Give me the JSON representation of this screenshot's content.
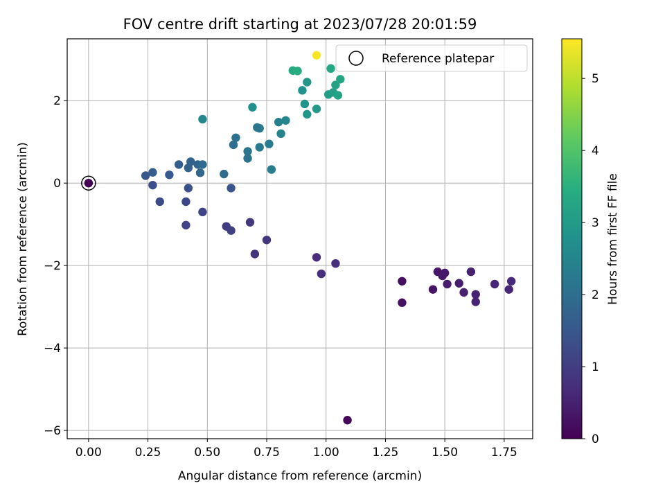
{
  "chart_data": {
    "type": "scatter",
    "title": "FOV centre drift starting at 2023/07/28 20:01:59",
    "xlabel": "Angular distance from reference (arcmin)",
    "ylabel": "Rotation from reference (arcmin)",
    "xlim": [
      -0.09,
      1.87
    ],
    "ylim": [
      -6.2,
      3.5
    ],
    "xticks": [
      0.0,
      0.25,
      0.5,
      0.75,
      1.0,
      1.25,
      1.5,
      1.75
    ],
    "xtick_labels": [
      "0.00",
      "0.25",
      "0.50",
      "0.75",
      "1.00",
      "1.25",
      "1.50",
      "1.75"
    ],
    "yticks": [
      2,
      0,
      -2,
      -4,
      -6
    ],
    "ytick_labels": [
      "2",
      "0",
      "−2",
      "−4",
      "−6"
    ],
    "grid": true,
    "colormap": "viridis",
    "colorbar": {
      "label": "Hours from first FF file",
      "range": [
        0,
        5.55
      ],
      "ticks": [
        0,
        1,
        2,
        3,
        4,
        5
      ],
      "tick_labels": [
        "0",
        "1",
        "2",
        "3",
        "4",
        "5"
      ]
    },
    "legend": {
      "position": "top-right",
      "entries": [
        "Reference platepar"
      ]
    },
    "reference_point": {
      "x": 0.0,
      "y": 0.0,
      "c": 0.0
    },
    "points": [
      {
        "x": 1.09,
        "y": -5.75,
        "c": 0.1
      },
      {
        "x": 1.32,
        "y": -2.38,
        "c": 0.2
      },
      {
        "x": 1.32,
        "y": -2.9,
        "c": 0.25
      },
      {
        "x": 1.45,
        "y": -2.58,
        "c": 0.3
      },
      {
        "x": 1.47,
        "y": -2.15,
        "c": 0.35
      },
      {
        "x": 1.49,
        "y": -2.25,
        "c": 0.4
      },
      {
        "x": 1.5,
        "y": -2.18,
        "c": 0.4
      },
      {
        "x": 1.51,
        "y": -2.45,
        "c": 0.45
      },
      {
        "x": 1.56,
        "y": -2.43,
        "c": 0.45
      },
      {
        "x": 1.58,
        "y": -2.65,
        "c": 0.5
      },
      {
        "x": 1.61,
        "y": -2.15,
        "c": 0.5
      },
      {
        "x": 1.63,
        "y": -2.7,
        "c": 0.55
      },
      {
        "x": 1.63,
        "y": -2.88,
        "c": 0.55
      },
      {
        "x": 1.71,
        "y": -2.45,
        "c": 0.6
      },
      {
        "x": 1.77,
        "y": -2.58,
        "c": 0.6
      },
      {
        "x": 1.78,
        "y": -2.38,
        "c": 0.65
      },
      {
        "x": 0.96,
        "y": -1.8,
        "c": 0.7
      },
      {
        "x": 0.98,
        "y": -2.2,
        "c": 0.75
      },
      {
        "x": 1.04,
        "y": -1.95,
        "c": 0.75
      },
      {
        "x": 0.7,
        "y": -1.72,
        "c": 0.8
      },
      {
        "x": 0.75,
        "y": -1.38,
        "c": 0.85
      },
      {
        "x": 0.68,
        "y": -0.95,
        "c": 0.9
      },
      {
        "x": 0.58,
        "y": -1.05,
        "c": 1.0
      },
      {
        "x": 0.6,
        "y": -1.15,
        "c": 1.05
      },
      {
        "x": 0.41,
        "y": -1.02,
        "c": 1.1
      },
      {
        "x": 0.48,
        "y": -0.7,
        "c": 1.15
      },
      {
        "x": 0.41,
        "y": -0.45,
        "c": 1.2
      },
      {
        "x": 0.3,
        "y": -0.45,
        "c": 1.25
      },
      {
        "x": 0.27,
        "y": -0.05,
        "c": 1.3
      },
      {
        "x": 0.42,
        "y": -0.12,
        "c": 1.35
      },
      {
        "x": 0.6,
        "y": -0.12,
        "c": 1.4
      },
      {
        "x": 0.24,
        "y": 0.18,
        "c": 1.5
      },
      {
        "x": 0.34,
        "y": 0.2,
        "c": 1.55
      },
      {
        "x": 0.27,
        "y": 0.26,
        "c": 1.6
      },
      {
        "x": 0.38,
        "y": 0.45,
        "c": 1.65
      },
      {
        "x": 0.42,
        "y": 0.37,
        "c": 1.7
      },
      {
        "x": 0.43,
        "y": 0.52,
        "c": 1.75
      },
      {
        "x": 0.46,
        "y": 0.45,
        "c": 1.8
      },
      {
        "x": 0.47,
        "y": 0.25,
        "c": 1.85
      },
      {
        "x": 0.48,
        "y": 0.45,
        "c": 1.9
      },
      {
        "x": 0.57,
        "y": 0.22,
        "c": 1.95
      },
      {
        "x": 0.61,
        "y": 0.93,
        "c": 2.0
      },
      {
        "x": 0.62,
        "y": 1.1,
        "c": 2.05
      },
      {
        "x": 0.67,
        "y": 0.6,
        "c": 2.1
      },
      {
        "x": 0.67,
        "y": 0.77,
        "c": 2.15
      },
      {
        "x": 0.71,
        "y": 1.35,
        "c": 2.2
      },
      {
        "x": 0.72,
        "y": 1.33,
        "c": 2.2
      },
      {
        "x": 0.72,
        "y": 0.87,
        "c": 2.25
      },
      {
        "x": 0.76,
        "y": 0.95,
        "c": 2.3
      },
      {
        "x": 0.77,
        "y": 0.33,
        "c": 2.35
      },
      {
        "x": 0.8,
        "y": 1.48,
        "c": 2.4
      },
      {
        "x": 0.81,
        "y": 1.2,
        "c": 2.45
      },
      {
        "x": 0.83,
        "y": 1.52,
        "c": 2.5
      },
      {
        "x": 0.48,
        "y": 1.55,
        "c": 2.55
      },
      {
        "x": 0.69,
        "y": 1.84,
        "c": 2.75
      },
      {
        "x": 0.9,
        "y": 2.25,
        "c": 2.8
      },
      {
        "x": 0.91,
        "y": 1.92,
        "c": 2.85
      },
      {
        "x": 0.92,
        "y": 1.67,
        "c": 2.9
      },
      {
        "x": 0.92,
        "y": 2.45,
        "c": 2.95
      },
      {
        "x": 0.96,
        "y": 1.8,
        "c": 3.0
      },
      {
        "x": 1.01,
        "y": 2.15,
        "c": 3.05
      },
      {
        "x": 1.03,
        "y": 2.2,
        "c": 3.1
      },
      {
        "x": 1.04,
        "y": 2.38,
        "c": 3.15
      },
      {
        "x": 1.05,
        "y": 2.13,
        "c": 3.2
      },
      {
        "x": 1.06,
        "y": 2.52,
        "c": 3.25
      },
      {
        "x": 1.02,
        "y": 2.78,
        "c": 3.3
      },
      {
        "x": 0.86,
        "y": 2.73,
        "c": 3.35
      },
      {
        "x": 0.88,
        "y": 2.72,
        "c": 3.45
      },
      {
        "x": 0.96,
        "y": 3.1,
        "c": 5.5
      }
    ]
  }
}
